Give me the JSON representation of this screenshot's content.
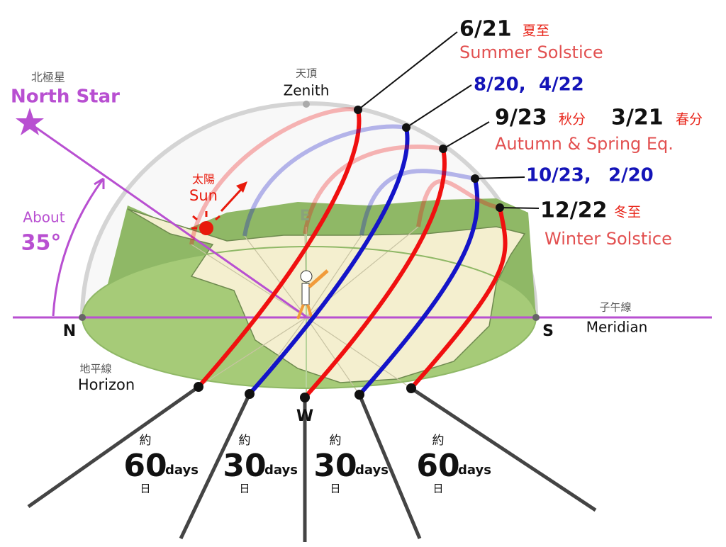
{
  "north_star": {
    "kanji": "北極星",
    "text": "North Star"
  },
  "angle": {
    "text": "About",
    "value": "35°"
  },
  "zenith": {
    "kanji": "天頂",
    "text": "Zenith"
  },
  "sun": {
    "kanji": "太陽",
    "text": "Sun"
  },
  "directions": {
    "north": "N",
    "east": "E",
    "south": "S",
    "west": "W"
  },
  "meridian": {
    "kanji": "子午線",
    "text": "Meridian"
  },
  "horizon": {
    "kanji": "地平線",
    "text": "Horizon"
  },
  "paths": [
    {
      "date": "6/21",
      "kanji": "夏至",
      "name": "Summer Solstice"
    },
    {
      "date": "8/20,",
      "date2": "4/22"
    },
    {
      "date": "9/23",
      "kanji": "秋分",
      "date2": "3/21",
      "kanji2": "春分",
      "name": "Autumn & Spring Eq."
    },
    {
      "date": "10/23,",
      "date2": "2/20"
    },
    {
      "date": "12/22",
      "kanji": "冬至",
      "name": "Winter Solstice"
    }
  ],
  "intervals": [
    {
      "prefix": "約",
      "number": "60",
      "unit": "days",
      "suffix": "日"
    },
    {
      "prefix": "約",
      "number": "30",
      "unit": "days",
      "suffix": "日"
    },
    {
      "prefix": "約",
      "number": "30",
      "unit": "days",
      "suffix": "日"
    },
    {
      "prefix": "約",
      "number": "60",
      "unit": "days",
      "suffix": "日"
    }
  ]
}
